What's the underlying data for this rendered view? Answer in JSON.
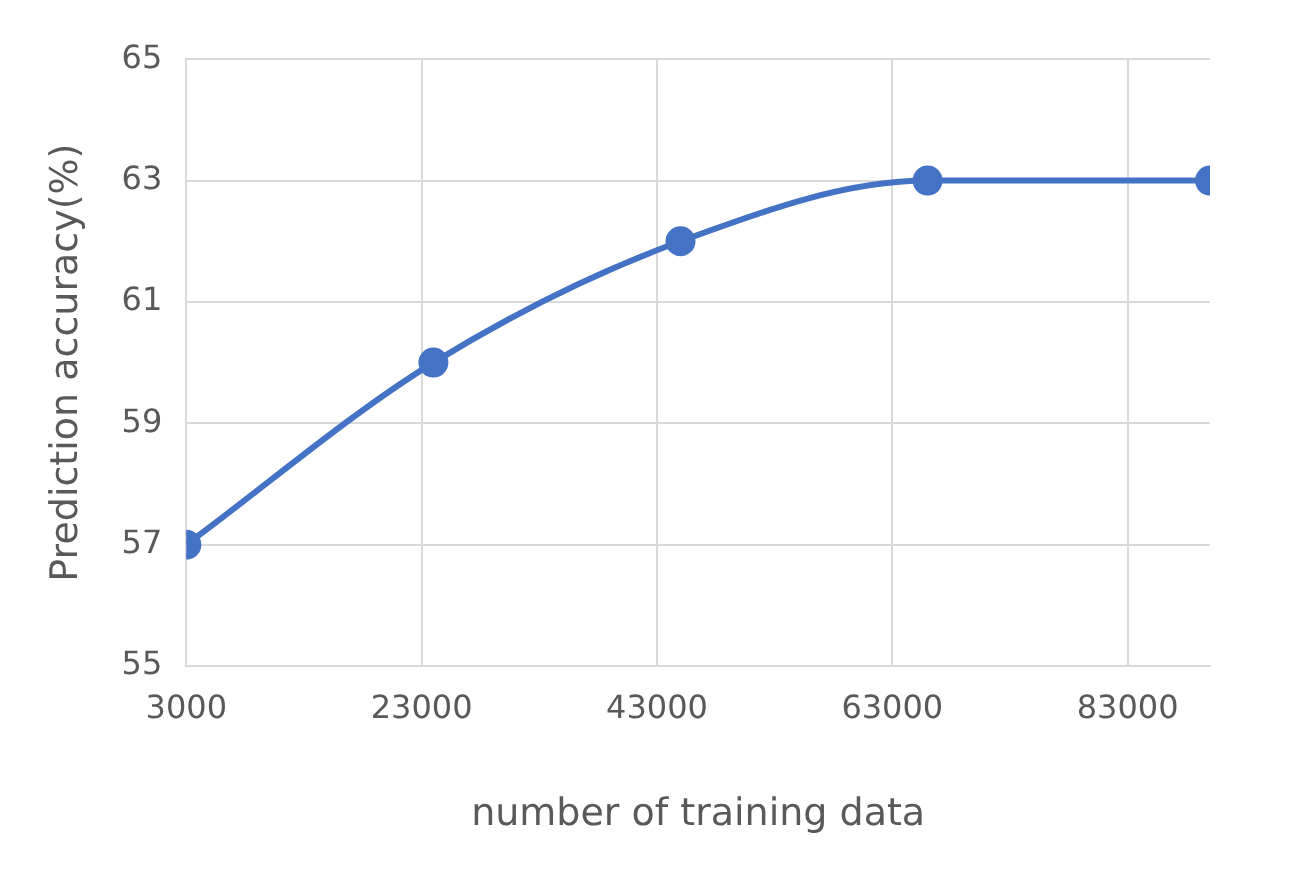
{
  "chart_data": {
    "type": "line",
    "xlabel": "number of training data",
    "ylabel": "Prediction accuracy(%)",
    "x": [
      3000,
      24000,
      45000,
      66000,
      90000
    ],
    "series": [
      {
        "color": "#4472c4",
        "values": [
          57,
          60,
          62,
          63,
          63
        ]
      }
    ],
    "xlim": [
      3000,
      90000
    ],
    "xticks": [
      3000,
      23000,
      43000,
      63000,
      83000
    ],
    "ylim": [
      55,
      65
    ],
    "yticks": [
      55,
      57,
      59,
      61,
      63,
      65
    ],
    "grid": true,
    "marker": "circle",
    "line_style": "solid"
  }
}
